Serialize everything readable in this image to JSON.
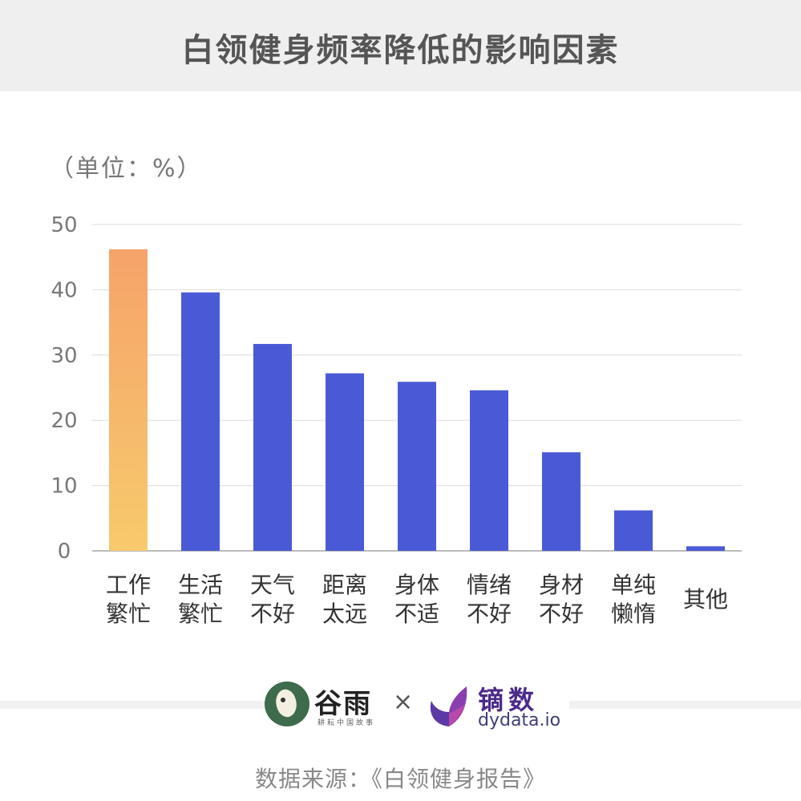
{
  "title": "白领健身频率降低的影响因素",
  "unit_label": "（单位：%）",
  "source": "数据来源：《白领健身报告》",
  "logos": {
    "guyu_name": "谷雨",
    "guyu_sub": "耕耘中国故事",
    "times": "×",
    "dydata_name": "镝数",
    "dydata_url": "dydata.io"
  },
  "colors": {
    "bar": "#4a5ad6",
    "highlight_top": "#f6a36a",
    "highlight_bottom": "#f7ca6c",
    "grid": "#dddddd"
  },
  "chart_data": {
    "type": "bar",
    "categories": [
      [
        "工作",
        "繁忙"
      ],
      [
        "生活",
        "繁忙"
      ],
      [
        "天气",
        "不好"
      ],
      [
        "距离",
        "太远"
      ],
      [
        "身体",
        "不适"
      ],
      [
        "情绪",
        "不好"
      ],
      [
        "身材",
        "不好"
      ],
      [
        "单纯",
        "懒惰"
      ],
      [
        "其他"
      ]
    ],
    "values": [
      46.2,
      39.6,
      31.7,
      27.2,
      25.9,
      24.6,
      15.1,
      6.2,
      0.7
    ],
    "highlight_index": 0,
    "ylim": [
      0,
      50
    ],
    "yticks": [
      0,
      10,
      20,
      30,
      40,
      50
    ],
    "grid": true
  }
}
